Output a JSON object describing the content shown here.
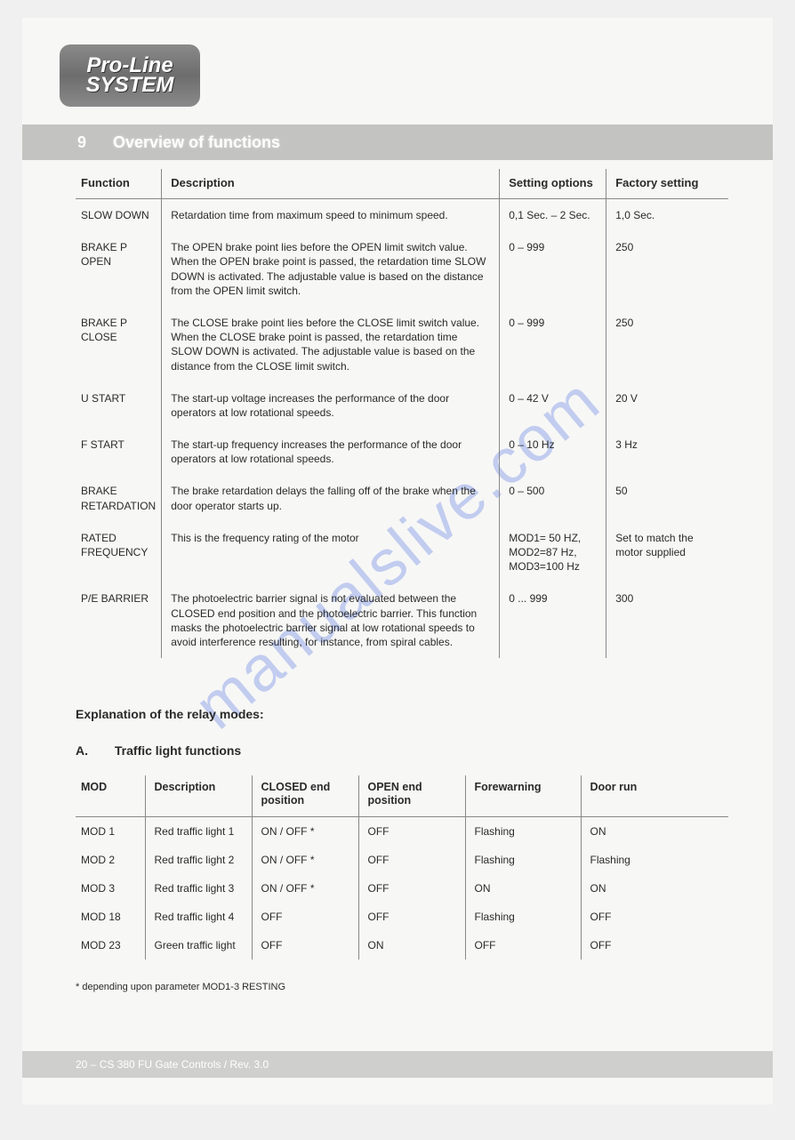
{
  "logo": {
    "line1": "Pro-Line",
    "line2": "SYSTEM"
  },
  "section": {
    "number": "9",
    "title": "Overview of functions"
  },
  "watermark": "manualslive.com",
  "table1": {
    "headers": {
      "function": "Function",
      "description": "Description",
      "options": "Setting options",
      "factory": "Factory setting"
    },
    "rows": [
      {
        "function": "SLOW DOWN",
        "description": "Retardation time from maximum speed to minimum speed.",
        "options": "0,1 Sec. – 2 Sec.",
        "factory": "1,0 Sec."
      },
      {
        "function": "BRAKE P OPEN",
        "description": "The OPEN brake point lies before the OPEN limit switch value. When the OPEN brake point is passed, the retardation time SLOW DOWN is activated. The adjustable value is based on the distance from the OPEN limit switch.",
        "options": "0 – 999",
        "factory": "250"
      },
      {
        "function": "BRAKE P CLOSE",
        "description": "The CLOSE brake point lies before the CLOSE limit switch value. When the CLOSE brake point is passed, the retardation time SLOW DOWN is activated. The adjustable value is based on the distance from the CLOSE limit switch.",
        "options": "0 – 999",
        "factory": "250"
      },
      {
        "function": "U START",
        "description": "The start-up voltage increases the performance of the door operators at low rotational speeds.",
        "options": "0 – 42 V",
        "factory": "20 V"
      },
      {
        "function": "F START",
        "description": "The start-up frequency increases the performance of the door operators at low rotational speeds.",
        "options": "0 – 10 Hz",
        "factory": "3 Hz"
      },
      {
        "function": "BRAKE RETARDATION",
        "description": "The brake retardation delays the falling off of the brake when the door operator starts up.",
        "options": "0 – 500",
        "factory": "50"
      },
      {
        "function": "RATED FREQUENCY",
        "description": "This is the frequency rating of the motor",
        "options": "MOD1= 50 HZ, MOD2=87 Hz, MOD3=100 Hz",
        "factory": "Set to match the motor supplied"
      },
      {
        "function": "P/E BARRIER",
        "description": "The photoelectric barrier signal is not evaluated between the CLOSED end position and the photoelectric barrier. This function masks the photoelectric barrier signal at low rotational speeds to avoid interference resulting, for instance, from spiral cables.",
        "options": "0 ... 999",
        "factory": "300"
      }
    ]
  },
  "heading_relay": "Explanation of the relay modes:",
  "subheading": {
    "letter": "A.",
    "text": "Traffic light functions"
  },
  "table2": {
    "headers": {
      "mod": "MOD",
      "description": "Description",
      "closed": "CLOSED end position",
      "open": "OPEN end position",
      "forewarning": "Forewarning",
      "doorrun": "Door run"
    },
    "rows": [
      {
        "mod": "MOD 1",
        "description": "Red traffic light 1",
        "closed": "ON / OFF *",
        "open": "OFF",
        "forewarning": "Flashing",
        "doorrun": "ON"
      },
      {
        "mod": "MOD 2",
        "description": "Red traffic light 2",
        "closed": "ON / OFF *",
        "open": "OFF",
        "forewarning": "Flashing",
        "doorrun": "Flashing"
      },
      {
        "mod": "MOD 3",
        "description": "Red traffic light 3",
        "closed": "ON / OFF *",
        "open": "OFF",
        "forewarning": "ON",
        "doorrun": "ON"
      },
      {
        "mod": "MOD 18",
        "description": "Red traffic light 4",
        "closed": "OFF",
        "open": "OFF",
        "forewarning": "Flashing",
        "doorrun": "OFF"
      },
      {
        "mod": "MOD 23",
        "description": "Green traffic light",
        "closed": "OFF",
        "open": "ON",
        "forewarning": "OFF",
        "doorrun": "OFF"
      }
    ]
  },
  "footnote": "* depending upon parameter MOD1-3 RESTING",
  "footer": "20 – CS 380 FU Gate Controls / Rev. 3.0"
}
